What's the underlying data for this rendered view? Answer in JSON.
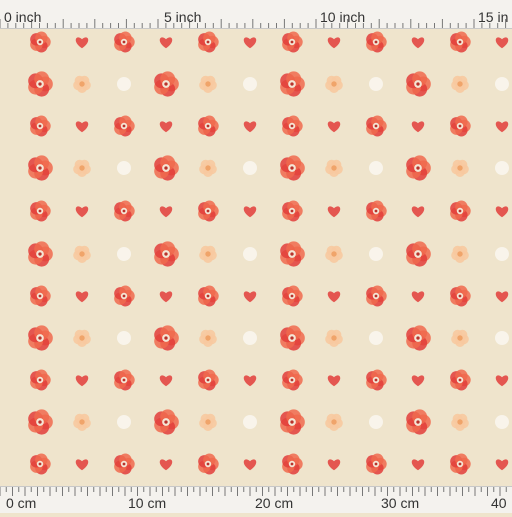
{
  "ruler_top": {
    "unit": "inch",
    "labels": [
      "0 inch",
      "5 inch",
      "10 inch",
      "15 in"
    ]
  },
  "ruler_bottom": {
    "unit": "cm",
    "labels": [
      "0 cm",
      "10 cm",
      "20 cm",
      "30 cm",
      "40"
    ]
  },
  "fabric": {
    "background": "#efe4cc",
    "motif": "red watercolor poppy",
    "accent_colors": [
      "#e23d3a",
      "#f06a4e",
      "#f7c9a0",
      "#f0a46a"
    ],
    "watermark_icon": "sm-logo-icon"
  }
}
